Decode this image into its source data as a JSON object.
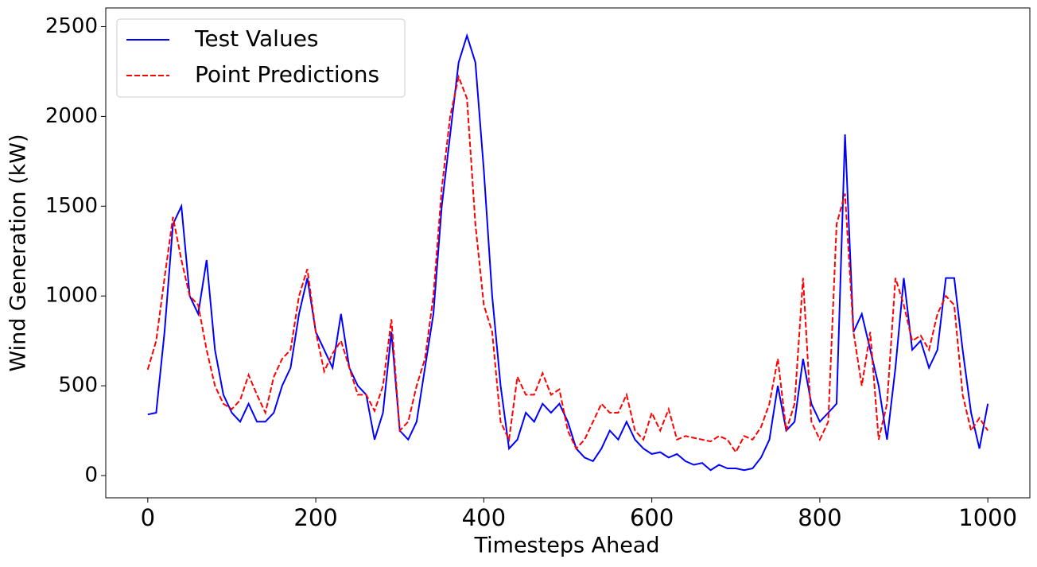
{
  "chart_data": {
    "type": "line",
    "x_label": "Timesteps Ahead",
    "y_label": "Wind Generation (kW)",
    "x": [
      0,
      10,
      20,
      30,
      40,
      50,
      60,
      70,
      80,
      90,
      100,
      110,
      120,
      130,
      140,
      150,
      160,
      170,
      180,
      190,
      200,
      210,
      220,
      230,
      240,
      250,
      260,
      270,
      280,
      290,
      300,
      310,
      320,
      330,
      340,
      350,
      360,
      370,
      380,
      390,
      400,
      410,
      420,
      430,
      440,
      450,
      460,
      470,
      480,
      490,
      500,
      510,
      520,
      530,
      540,
      550,
      560,
      570,
      580,
      590,
      600,
      610,
      620,
      630,
      640,
      650,
      660,
      670,
      680,
      690,
      700,
      710,
      720,
      730,
      740,
      750,
      760,
      770,
      780,
      790,
      800,
      810,
      820,
      830,
      840,
      850,
      860,
      870,
      880,
      890,
      900,
      910,
      920,
      930,
      940,
      950,
      960,
      970,
      980,
      990,
      1000
    ],
    "series": [
      {
        "name": "Test Values",
        "color": "#0000ff",
        "linestyle": "solid",
        "values": [
          340,
          350,
          800,
          1400,
          1500,
          1000,
          900,
          1200,
          700,
          450,
          350,
          300,
          400,
          300,
          300,
          350,
          500,
          600,
          900,
          1100,
          800,
          700,
          600,
          900,
          600,
          500,
          450,
          200,
          350,
          800,
          250,
          200,
          300,
          600,
          900,
          1500,
          1900,
          2300,
          2450,
          2300,
          1700,
          1000,
          500,
          150,
          200,
          350,
          300,
          400,
          350,
          400,
          300,
          150,
          100,
          80,
          150,
          250,
          200,
          300,
          200,
          150,
          120,
          130,
          100,
          120,
          80,
          60,
          70,
          30,
          60,
          40,
          40,
          30,
          40,
          100,
          200,
          500,
          250,
          300,
          650,
          400,
          300,
          350,
          400,
          1900,
          800,
          900,
          700,
          500,
          200,
          600,
          1100,
          700,
          750,
          600,
          700,
          1100,
          1100,
          700,
          350,
          150,
          400
        ]
      },
      {
        "name": "Point Predictions",
        "color": "#ff0000",
        "linestyle": "dashed",
        "values": [
          590,
          750,
          1100,
          1440,
          1200,
          1000,
          950,
          700,
          500,
          400,
          370,
          420,
          560,
          450,
          350,
          550,
          650,
          700,
          1000,
          1150,
          800,
          580,
          680,
          750,
          600,
          450,
          450,
          360,
          500,
          870,
          250,
          300,
          500,
          650,
          1000,
          1600,
          2000,
          2220,
          2100,
          1400,
          950,
          800,
          300,
          200,
          550,
          450,
          450,
          570,
          450,
          480,
          250,
          150,
          200,
          300,
          400,
          350,
          350,
          450,
          250,
          200,
          350,
          250,
          370,
          200,
          220,
          210,
          200,
          190,
          220,
          200,
          130,
          220,
          200,
          270,
          400,
          650,
          250,
          400,
          1100,
          300,
          200,
          300,
          1400,
          1570,
          800,
          500,
          800,
          200,
          400,
          1100,
          950,
          750,
          780,
          700,
          900,
          1000,
          950,
          450,
          250,
          320,
          250
        ]
      }
    ],
    "xlim": [
      -50,
      1050
    ],
    "ylim": [
      -124,
      2604
    ],
    "xticks": [
      0,
      200,
      400,
      600,
      800,
      1000
    ],
    "yticks": [
      0,
      500,
      1000,
      1500,
      2000,
      2500
    ],
    "legend": "upper left"
  }
}
